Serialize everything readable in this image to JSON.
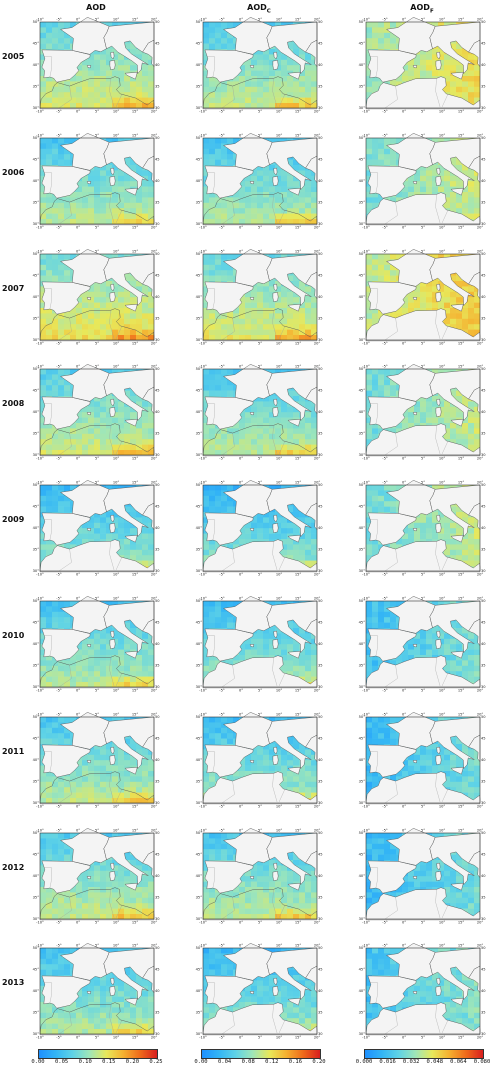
{
  "columns": [
    {
      "id": "aod",
      "label": "AOD",
      "sub": ""
    },
    {
      "id": "aodc",
      "label": "AOD",
      "sub": "C"
    },
    {
      "id": "aodf",
      "label": "AOD",
      "sub": "F"
    }
  ],
  "years": [
    "2005",
    "2006",
    "2007",
    "2008",
    "2009",
    "2010",
    "2011",
    "2012",
    "2013"
  ],
  "map_axes": {
    "lon_ticks": [
      "-10°",
      "-5°",
      "0°",
      "5°",
      "10°",
      "15°",
      "20°"
    ],
    "lat_ticks": [
      "30°",
      "35°",
      "40°",
      "45°",
      "50°"
    ]
  },
  "colorbars": [
    {
      "ticks": [
        "0.00",
        "0.05",
        "0.10",
        "0.15",
        "0.20",
        "0.25"
      ]
    },
    {
      "ticks": [
        "0.00",
        "0.04",
        "0.08",
        "0.12",
        "0.16",
        "0.20"
      ]
    },
    {
      "ticks": [
        "0.000",
        "0.016",
        "0.032",
        "0.048",
        "0.064",
        "0.080"
      ]
    }
  ],
  "colors": {
    "scale": [
      "#1e90ff",
      "#33b5f5",
      "#5fd3e6",
      "#9fe6b8",
      "#e8e85a",
      "#f5b030",
      "#ef6a1a",
      "#d81e1e"
    ],
    "land": "#f4f4f4",
    "coast": "#555555"
  },
  "chart_data": [
    {
      "type": "heatmap",
      "title": "AOD",
      "row_labels": [
        "2005",
        "2006",
        "2007",
        "2008",
        "2009",
        "2010",
        "2011",
        "2012",
        "2013"
      ],
      "x_ticks": [
        "-10°",
        "-5°",
        "0°",
        "5°",
        "10°",
        "15°",
        "20°"
      ],
      "y_ticks": [
        "30°",
        "35°",
        "40°",
        "45°",
        "50°"
      ],
      "colorbar": [
        0.0,
        0.05,
        0.1,
        0.15,
        0.2,
        0.25
      ],
      "sea_mean_levels": [
        0.42,
        0.36,
        0.48,
        0.4,
        0.3,
        0.34,
        0.36,
        0.38,
        0.34
      ]
    },
    {
      "type": "heatmap",
      "title": "AODC",
      "row_labels": [
        "2005",
        "2006",
        "2007",
        "2008",
        "2009",
        "2010",
        "2011",
        "2012",
        "2013"
      ],
      "x_ticks": [
        "-10°",
        "-5°",
        "0°",
        "5°",
        "10°",
        "15°",
        "20°"
      ],
      "y_ticks": [
        "30°",
        "35°",
        "40°",
        "45°",
        "50°"
      ],
      "colorbar": [
        0.0,
        0.04,
        0.08,
        0.12,
        0.16,
        0.2
      ],
      "sea_mean_levels": [
        0.38,
        0.34,
        0.44,
        0.36,
        0.28,
        0.32,
        0.32,
        0.36,
        0.3
      ]
    },
    {
      "type": "heatmap",
      "title": "AODF",
      "row_labels": [
        "2005",
        "2006",
        "2007",
        "2008",
        "2009",
        "2010",
        "2011",
        "2012",
        "2013"
      ],
      "x_ticks": [
        "-10°",
        "-5°",
        "0°",
        "5°",
        "10°",
        "15°",
        "20°"
      ],
      "y_ticks": [
        "30°",
        "35°",
        "40°",
        "45°",
        "50°"
      ],
      "colorbar": [
        0.0,
        0.016,
        0.032,
        0.048,
        0.064,
        0.08
      ],
      "sea_mean_levels": [
        0.5,
        0.42,
        0.56,
        0.4,
        0.4,
        0.26,
        0.24,
        0.24,
        0.28
      ]
    }
  ]
}
